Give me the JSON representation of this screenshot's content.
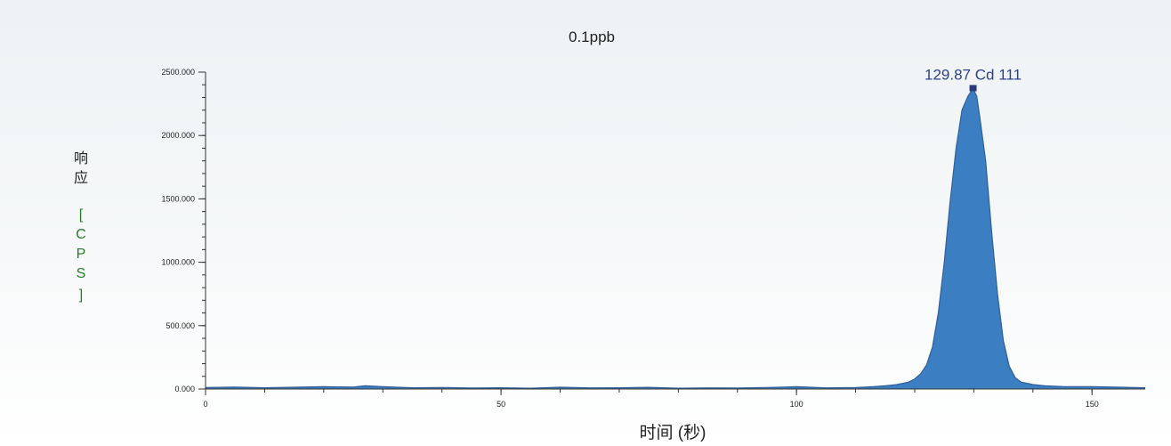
{
  "chart_data": {
    "type": "area",
    "title": "0.1ppb",
    "xlabel": "时间 (秒)",
    "ylabel_chars": [
      "响",
      "应",
      "[",
      "C",
      "P",
      "S",
      "]"
    ],
    "xlim": [
      0,
      159
    ],
    "ylim": [
      0,
      2500
    ],
    "x_ticks": [
      {
        "value": 0,
        "label": "0"
      },
      {
        "value": 50,
        "label": "50"
      },
      {
        "value": 100,
        "label": "100"
      },
      {
        "value": 150,
        "label": "150"
      }
    ],
    "y_ticks": [
      {
        "value": 0,
        "label": "0.000"
      },
      {
        "value": 500,
        "label": "500.000"
      },
      {
        "value": 1000,
        "label": "1000.000"
      },
      {
        "value": 1500,
        "label": "1500.000"
      },
      {
        "value": 2000,
        "label": "2000.000"
      },
      {
        "value": 2500,
        "label": "2500.000"
      }
    ],
    "series": [
      {
        "color": "#3b7ec2",
        "x": [
          0,
          5,
          10,
          15,
          20,
          25,
          27,
          30,
          35,
          40,
          45,
          50,
          55,
          60,
          65,
          70,
          75,
          80,
          85,
          90,
          95,
          100,
          105,
          110,
          113,
          115,
          117,
          119,
          120,
          121,
          122,
          123,
          124,
          125,
          126,
          127,
          128,
          129,
          129.87,
          130.5,
          131,
          132,
          133,
          134,
          135,
          136,
          137,
          138,
          140,
          142,
          145,
          150,
          155,
          159
        ],
        "y": [
          12,
          15,
          10,
          14,
          18,
          15,
          25,
          18,
          10,
          12,
          8,
          10,
          6,
          14,
          9,
          10,
          13,
          6,
          9,
          8,
          12,
          18,
          9,
          12,
          18,
          25,
          35,
          55,
          80,
          120,
          190,
          330,
          600,
          1000,
          1480,
          1900,
          2200,
          2310,
          2370,
          2310,
          2150,
          1800,
          1250,
          750,
          380,
          180,
          90,
          55,
          35,
          25,
          20,
          18,
          14,
          10
        ]
      }
    ],
    "annotations": [
      {
        "text": "129.87 Cd 111",
        "x": 129.87,
        "y": 2370
      }
    ],
    "grid": false,
    "legend": "none"
  }
}
